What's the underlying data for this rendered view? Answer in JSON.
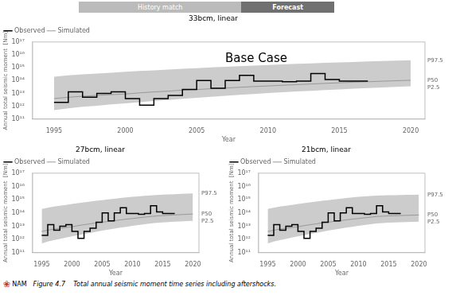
{
  "header": [
    {
      "text": "History match",
      "color": "#bbbbbb"
    },
    {
      "text": "Forecast",
      "color": "#707070"
    }
  ],
  "caption": "Figure 4.7    Total annual seismic moment time series including aftershocks.",
  "logo": {
    "symbol": "❀",
    "text": "NAM",
    "color": "#cc3333"
  },
  "chart_data": [
    {
      "type": "line",
      "title": "33bcm, linear",
      "xlabel": "Year",
      "ylabel": "Annual total seismic moment  [Nm]",
      "annotation": "Base Case",
      "x": [
        1995,
        1996,
        1997,
        1998,
        1999,
        2000,
        2001,
        2002,
        2003,
        2004,
        2005,
        2006,
        2007,
        2008,
        2009,
        2010,
        2011,
        2012,
        2013,
        2014,
        2015,
        2016,
        2017,
        2018,
        2019,
        2020
      ],
      "xlim": [
        1993.5,
        2021
      ],
      "xticks": [
        1995,
        2000,
        2005,
        2010,
        2015,
        2020
      ],
      "ylim": [
        100000000000.0,
        1e+17
      ],
      "yticks": [
        {
          "value": 100000000000.0,
          "label": "10¹¹"
        },
        {
          "value": 1000000000000.0,
          "label": "10¹²"
        },
        {
          "value": 10000000000000.0,
          "label": "10¹³"
        },
        {
          "value": 100000000000000.0,
          "label": "10¹⁴"
        },
        {
          "value": 1000000000000000.0,
          "label": "10¹⁵"
        },
        {
          "value": 1e+16,
          "label": "10¹⁶"
        },
        {
          "value": 1e+17,
          "label": "10¹⁷"
        }
      ],
      "log": "y",
      "grid": false,
      "legend": "upper left",
      "series": [
        {
          "name": "Observed",
          "color": "#000000",
          "line_style": "step",
          "values": [
            2000000000000.0,
            13000000000000.0,
            5000000000000.0,
            10000000000000.0,
            13000000000000.0,
            4000000000000.0,
            1200000000000.0,
            4000000000000.0,
            7000000000000.0,
            20000000000000.0,
            100000000000000.0,
            25000000000000.0,
            100000000000000.0,
            250000000000000.0,
            90000000000000.0,
            90000000000000.0,
            80000000000000.0,
            90000000000000.0,
            350000000000000.0,
            120000000000000.0,
            90000000000000.0,
            90000000000000.0,
            90000000000000.0,
            null,
            null,
            null
          ]
        },
        {
          "name": "Simulated",
          "color": "#999999",
          "line_style": "solid",
          "end_label": "P50",
          "values": [
            4000000000000.0,
            5000000000000.0,
            6000000000000.0,
            7000000000000.0,
            8000000000000.0,
            9000000000000.0,
            11000000000000.0,
            13000000000000.0,
            15000000000000.0,
            18000000000000.0,
            20000000000000.0,
            23000000000000.0,
            26000000000000.0,
            30000000000000.0,
            34000000000000.0,
            38000000000000.0,
            43000000000000.0,
            48000000000000.0,
            54000000000000.0,
            60000000000000.0,
            67000000000000.0,
            74000000000000.0,
            81000000000000.0,
            89000000000000.0,
            97000000000000.0,
            105000000000000.0
          ]
        }
      ],
      "band": {
        "color": "#cccccc",
        "upper_label": "P97.5",
        "lower_label": "P2.5",
        "upper": [
          200000000000000.0,
          250000000000000.0,
          300000000000000.0,
          350000000000000.0,
          400000000000000.0,
          480000000000000.0,
          550000000000000.0,
          630000000000000.0,
          720000000000000.0,
          820000000000000.0,
          930000000000000.0,
          1050000000000000.0,
          1180000000000000.0,
          1320000000000000.0,
          1470000000000000.0,
          1630000000000000.0,
          1800000000000000.0,
          1980000000000000.0,
          2170000000000000.0,
          2370000000000000.0,
          2580000000000000.0,
          2800000000000000.0,
          3030000000000000.0,
          3270000000000000.0,
          3520000000000000.0,
          3780000000000000.0
        ],
        "lower": [
          500000000000.0,
          700000000000.0,
          900000000000.0,
          1100000000000.0,
          1400000000000.0,
          1700000000000.0,
          2100000000000.0,
          2600000000000.0,
          3100000000000.0,
          3800000000000.0,
          4600000000000.0,
          5500000000000.0,
          6500000000000.0,
          7700000000000.0,
          9000000000000.0,
          10500000000000.0,
          12200000000000.0,
          14000000000000.0,
          16000000000000.0,
          18200000000000.0,
          20600000000000.0,
          23200000000000.0,
          26000000000000.0,
          29000000000000.0,
          32000000000000.0,
          35500000000000.0
        ]
      }
    },
    {
      "type": "line",
      "title": "27bcm, linear",
      "xlabel": "Year",
      "ylabel": "Annual total seismic moment  [Nm]",
      "x": [
        1995,
        1996,
        1997,
        1998,
        1999,
        2000,
        2001,
        2002,
        2003,
        2004,
        2005,
        2006,
        2007,
        2008,
        2009,
        2010,
        2011,
        2012,
        2013,
        2014,
        2015,
        2016,
        2017,
        2018,
        2019,
        2020
      ],
      "xlim": [
        1993.5,
        2021
      ],
      "xticks": [
        1995,
        2000,
        2005,
        2010,
        2015,
        2020
      ],
      "ylim": [
        100000000000.0,
        1e+17
      ],
      "yticks": [
        {
          "value": 100000000000.0,
          "label": "10¹¹"
        },
        {
          "value": 1000000000000.0,
          "label": "10¹²"
        },
        {
          "value": 10000000000000.0,
          "label": "10¹³"
        },
        {
          "value": 100000000000000.0,
          "label": "10¹⁴"
        },
        {
          "value": 1000000000000000.0,
          "label": "10¹⁵"
        },
        {
          "value": 1e+16,
          "label": "10¹⁶"
        },
        {
          "value": 1e+17,
          "label": "10¹⁷"
        }
      ],
      "log": "y",
      "grid": false,
      "legend": "upper left",
      "series": [
        {
          "name": "Observed",
          "color": "#000000",
          "line_style": "step",
          "values": [
            2000000000000.0,
            13000000000000.0,
            5000000000000.0,
            10000000000000.0,
            13000000000000.0,
            4000000000000.0,
            1200000000000.0,
            4000000000000.0,
            7000000000000.0,
            20000000000000.0,
            100000000000000.0,
            25000000000000.0,
            100000000000000.0,
            250000000000000.0,
            90000000000000.0,
            90000000000000.0,
            80000000000000.0,
            90000000000000.0,
            350000000000000.0,
            120000000000000.0,
            90000000000000.0,
            90000000000000.0,
            90000000000000.0,
            null,
            null,
            null
          ]
        },
        {
          "name": "Simulated",
          "color": "#999999",
          "line_style": "solid",
          "end_label": "P50",
          "values": [
            4000000000000.0,
            5000000000000.0,
            6000000000000.0,
            7000000000000.0,
            8000000000000.0,
            9000000000000.0,
            11000000000000.0,
            13000000000000.0,
            15000000000000.0,
            18000000000000.0,
            20000000000000.0,
            23000000000000.0,
            26000000000000.0,
            30000000000000.0,
            34000000000000.0,
            38000000000000.0,
            43000000000000.0,
            48000000000000.0,
            54000000000000.0,
            59000000000000.0,
            63000000000000.0,
            67000000000000.0,
            71000000000000.0,
            75000000000000.0,
            79000000000000.0,
            83000000000000.0
          ]
        }
      ],
      "band": {
        "color": "#cccccc",
        "upper_label": "P97.5",
        "lower_label": "P2.5",
        "upper": [
          200000000000000.0,
          250000000000000.0,
          300000000000000.0,
          350000000000000.0,
          400000000000000.0,
          480000000000000.0,
          550000000000000.0,
          630000000000000.0,
          720000000000000.0,
          820000000000000.0,
          930000000000000.0,
          1050000000000000.0,
          1180000000000000.0,
          1320000000000000.0,
          1470000000000000.0,
          1630000000000000.0,
          1800000000000000.0,
          1950000000000000.0,
          2100000000000000.0,
          2250000000000000.0,
          2380000000000000.0,
          2500000000000000.0,
          2620000000000000.0,
          2730000000000000.0,
          2830000000000000.0,
          2930000000000000.0
        ],
        "lower": [
          500000000000.0,
          700000000000.0,
          900000000000.0,
          1100000000000.0,
          1400000000000.0,
          1700000000000.0,
          2100000000000.0,
          2600000000000.0,
          3100000000000.0,
          3800000000000.0,
          4600000000000.0,
          5500000000000.0,
          6500000000000.0,
          7700000000000.0,
          9000000000000.0,
          10500000000000.0,
          12200000000000.0,
          14000000000000.0,
          16000000000000.0,
          17800000000000.0,
          19300000000000.0,
          20700000000000.0,
          22000000000000.0,
          23200000000000.0,
          24300000000000.0,
          25300000000000.0
        ]
      }
    },
    {
      "type": "line",
      "title": "21bcm, linear",
      "xlabel": "Year",
      "ylabel": "Annual total seismic moment  [Nm]",
      "x": [
        1995,
        1996,
        1997,
        1998,
        1999,
        2000,
        2001,
        2002,
        2003,
        2004,
        2005,
        2006,
        2007,
        2008,
        2009,
        2010,
        2011,
        2012,
        2013,
        2014,
        2015,
        2016,
        2017,
        2018,
        2019,
        2020
      ],
      "xlim": [
        1993.5,
        2021
      ],
      "xticks": [
        1995,
        2000,
        2005,
        2010,
        2015,
        2020
      ],
      "ylim": [
        100000000000.0,
        1e+17
      ],
      "yticks": [
        {
          "value": 100000000000.0,
          "label": "10¹¹"
        },
        {
          "value": 1000000000000.0,
          "label": "10¹²"
        },
        {
          "value": 10000000000000.0,
          "label": "10¹³"
        },
        {
          "value": 100000000000000.0,
          "label": "10¹⁴"
        },
        {
          "value": 1000000000000000.0,
          "label": "10¹⁵"
        },
        {
          "value": 1e+16,
          "label": "10¹⁶"
        },
        {
          "value": 1e+17,
          "label": "10¹⁷"
        }
      ],
      "log": "y",
      "grid": false,
      "legend": "upper left",
      "series": [
        {
          "name": "Observed",
          "color": "#000000",
          "line_style": "step",
          "values": [
            2000000000000.0,
            13000000000000.0,
            5000000000000.0,
            10000000000000.0,
            13000000000000.0,
            4000000000000.0,
            1200000000000.0,
            4000000000000.0,
            7000000000000.0,
            20000000000000.0,
            100000000000000.0,
            25000000000000.0,
            100000000000000.0,
            250000000000000.0,
            90000000000000.0,
            90000000000000.0,
            80000000000000.0,
            90000000000000.0,
            350000000000000.0,
            120000000000000.0,
            90000000000000.0,
            90000000000000.0,
            90000000000000.0,
            null,
            null,
            null
          ]
        },
        {
          "name": "Simulated",
          "color": "#999999",
          "line_style": "solid",
          "end_label": "P50",
          "values": [
            4000000000000.0,
            5000000000000.0,
            6000000000000.0,
            7000000000000.0,
            8000000000000.0,
            9000000000000.0,
            11000000000000.0,
            13000000000000.0,
            15000000000000.0,
            18000000000000.0,
            20000000000000.0,
            23000000000000.0,
            26000000000000.0,
            30000000000000.0,
            34000000000000.0,
            38000000000000.0,
            43000000000000.0,
            48000000000000.0,
            54000000000000.0,
            57000000000000.0,
            60000000000000.0,
            62000000000000.0,
            64000000000000.0,
            66000000000000.0,
            68000000000000.0,
            70000000000000.0
          ]
        }
      ],
      "band": {
        "color": "#cccccc",
        "upper_label": "P97.5",
        "lower_label": "P2.5",
        "upper": [
          200000000000000.0,
          250000000000000.0,
          300000000000000.0,
          350000000000000.0,
          400000000000000.0,
          480000000000000.0,
          550000000000000.0,
          630000000000000.0,
          720000000000000.0,
          820000000000000.0,
          930000000000000.0,
          1050000000000000.0,
          1180000000000000.0,
          1320000000000000.0,
          1470000000000000.0,
          1630000000000000.0,
          1800000000000000.0,
          1900000000000000.0,
          2000000000000000.0,
          2080000000000000.0,
          2150000000000000.0,
          2210000000000000.0,
          2270000000000000.0,
          2320000000000000.0,
          2370000000000000.0,
          2420000000000000.0
        ],
        "lower": [
          500000000000.0,
          700000000000.0,
          900000000000.0,
          1100000000000.0,
          1400000000000.0,
          1700000000000.0,
          2100000000000.0,
          2600000000000.0,
          3100000000000.0,
          3800000000000.0,
          4600000000000.0,
          5500000000000.0,
          6500000000000.0,
          7700000000000.0,
          9000000000000.0,
          10500000000000.0,
          12200000000000.0,
          14000000000000.0,
          16000000000000.0,
          17500000000000.0,
          18500000000000.0,
          19300000000000.0,
          20000000000000.0,
          20600000000000.0,
          21200000000000.0,
          21700000000000.0
        ]
      }
    }
  ]
}
